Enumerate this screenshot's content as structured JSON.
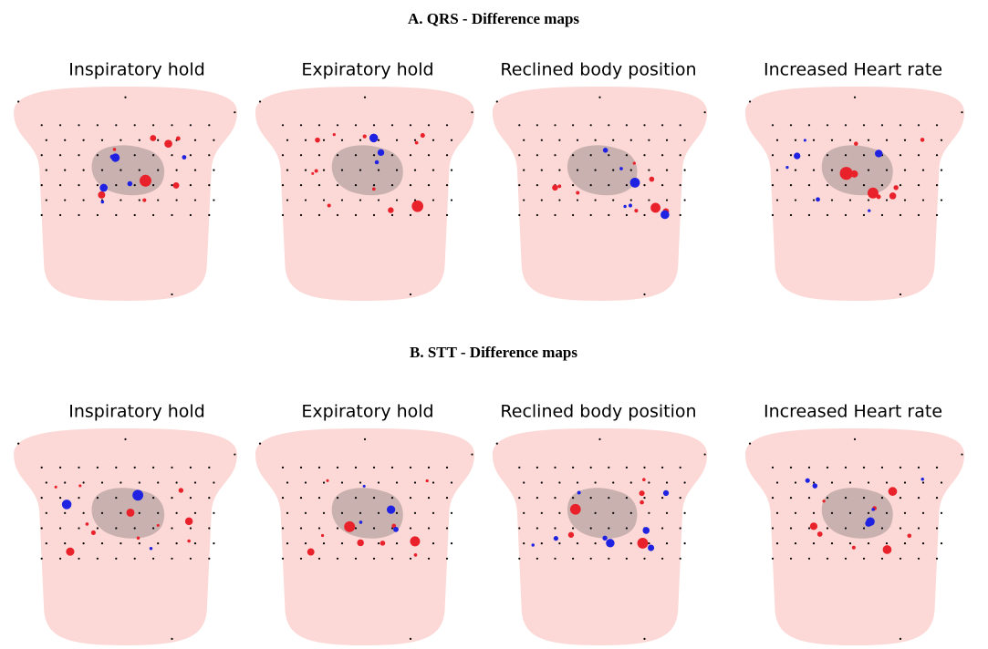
{
  "sections": [
    {
      "title": "A.   QRS - Difference maps",
      "panels": [
        "Inspiratory hold",
        "Expiratory hold",
        "Reclined body position",
        "Increased Heart rate"
      ]
    },
    {
      "title": "B.   STT - Difference maps",
      "panels": [
        "Inspiratory hold",
        "Expiratory hold",
        "Reclined body position",
        "Increased Heart rate"
      ]
    }
  ]
}
